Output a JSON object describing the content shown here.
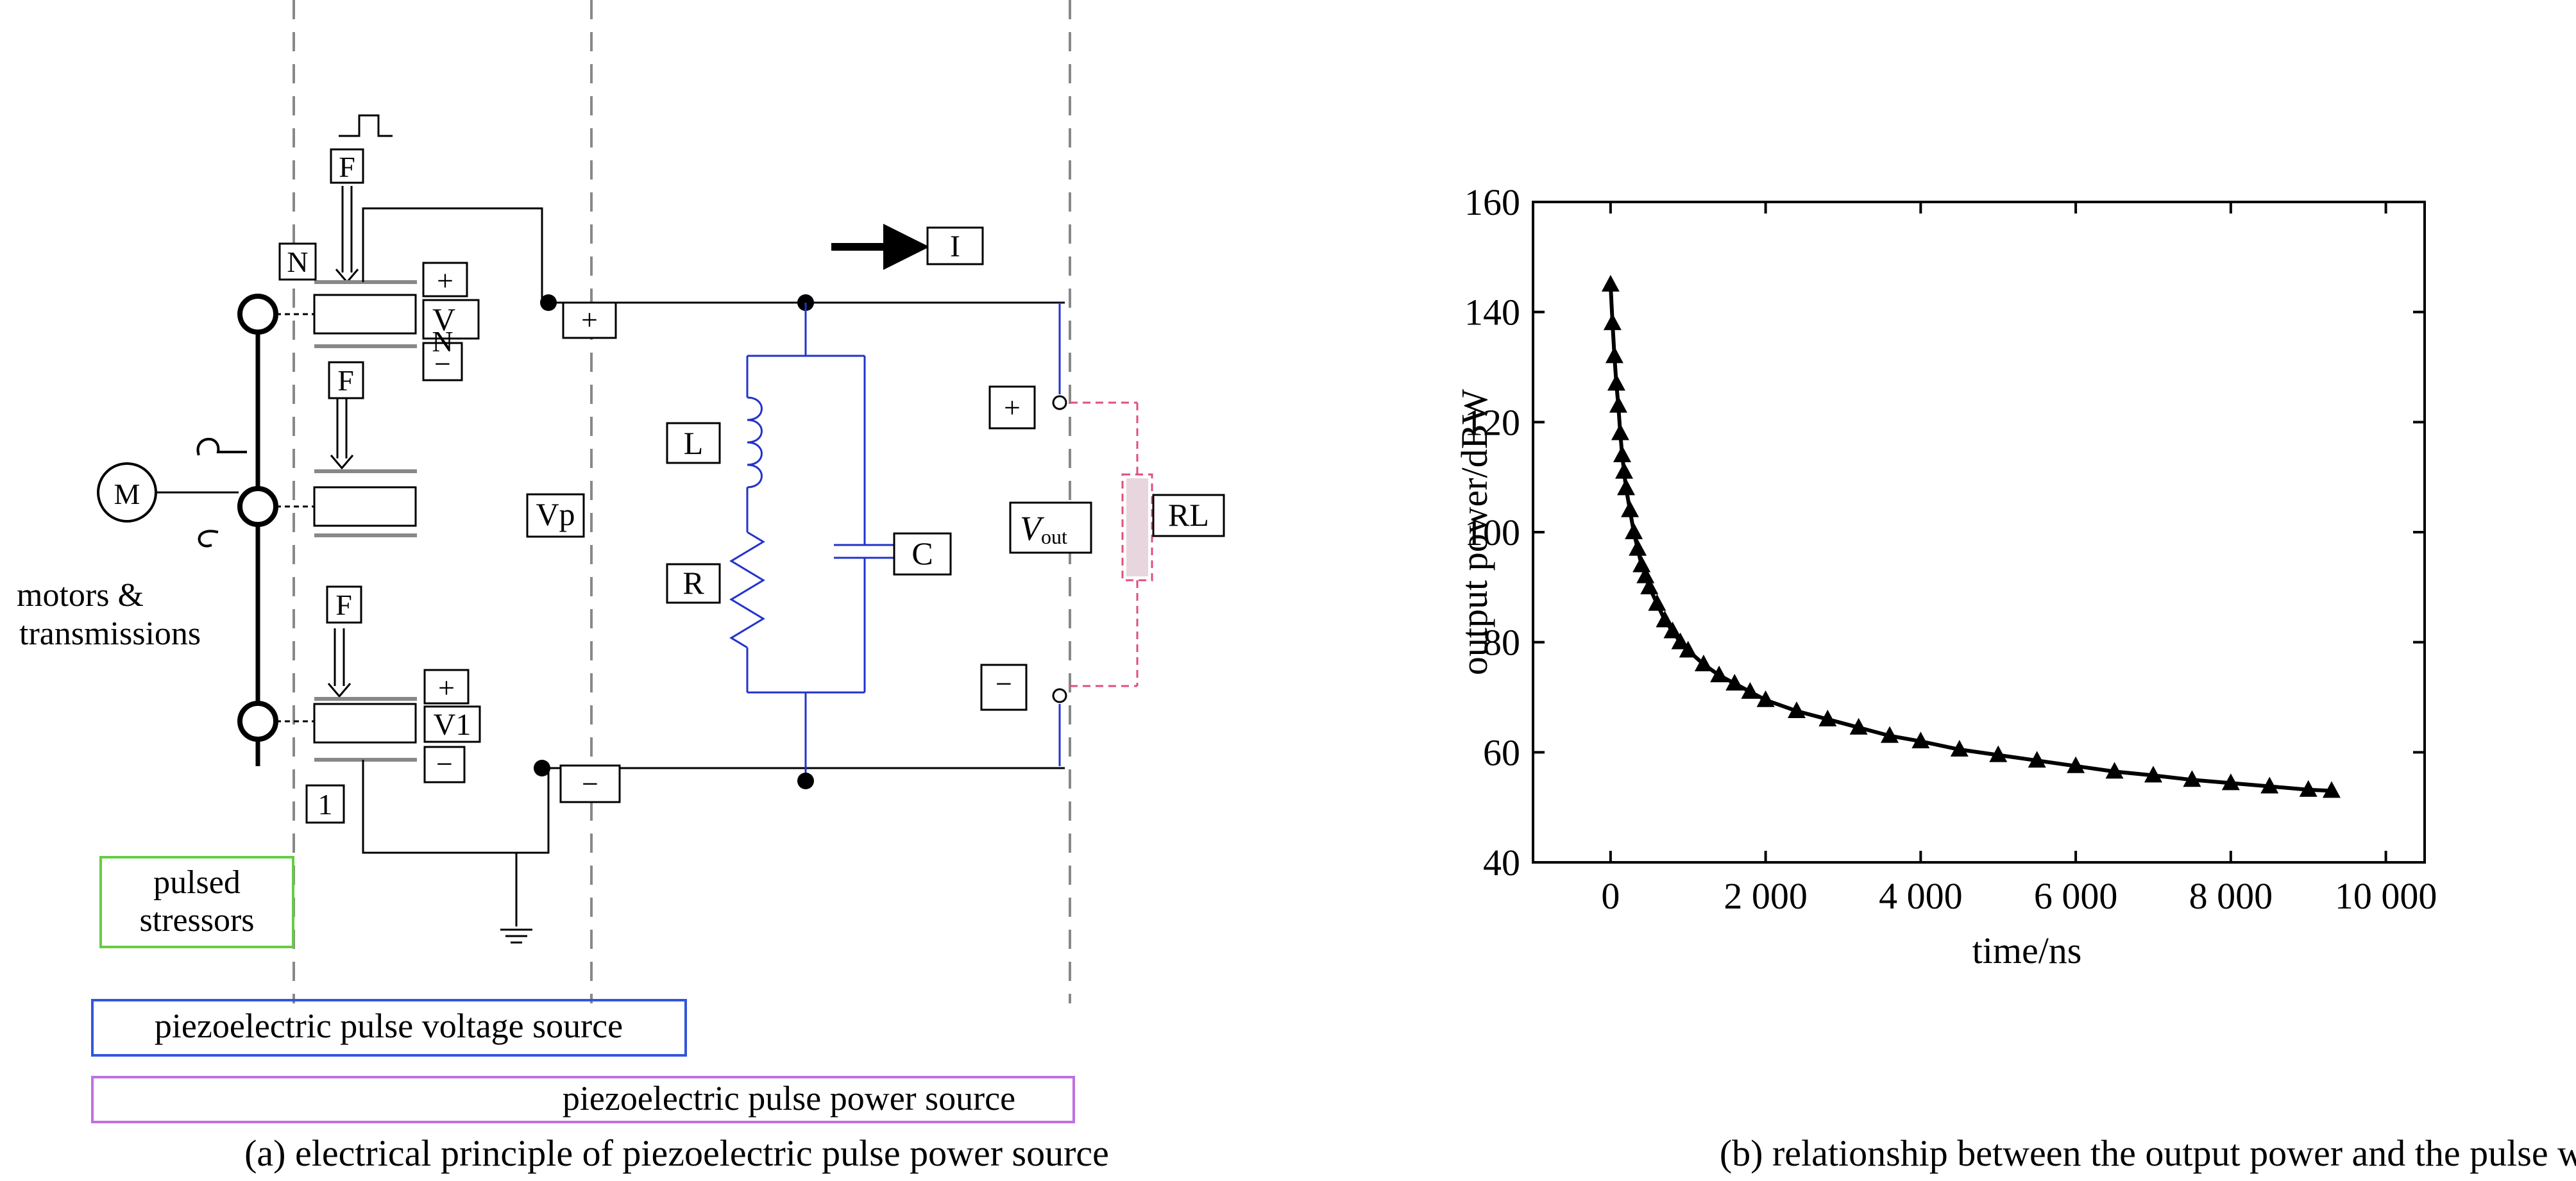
{
  "panel_a": {
    "caption": "(a) electrical principle of piezoelectric pulse power source",
    "labels": {
      "force": "F",
      "n_top": "N",
      "plus": "+",
      "minus": "−",
      "v_top": "V",
      "n_under_v": "N",
      "v1": "V1",
      "one": "1",
      "motor": "M",
      "motors_line1": "motors &",
      "motors_line2": "transmissions",
      "vp": "Vp",
      "L": "L",
      "R": "R",
      "C": "C",
      "I": "I",
      "vout_main": "V",
      "vout_sub": "out",
      "RL": "RL",
      "pulsed_line1": "pulsed",
      "pulsed_line2": "stressors",
      "voltage_source": "piezoelectric pulse voltage source",
      "power_source": "piezoelectric pulse power source"
    },
    "colors": {
      "circuit": "#000000",
      "rlc_branch": "#2233cc",
      "load": "#e0507a",
      "voltage_box": "#3355dd",
      "power_box": "#c070e0",
      "stressor_box": "#66cc44",
      "divider": "#888888"
    }
  },
  "panel_b": {
    "caption": "(b) relationship between the output power and the pulse width"
  },
  "chart_data": {
    "type": "scatter",
    "marker": "filled-triangle",
    "title": "",
    "xlabel": "time/ns",
    "ylabel": "output power/dBW",
    "xlim": [
      -1000,
      10500
    ],
    "ylim": [
      40,
      160
    ],
    "xticks": [
      0,
      2000,
      4000,
      6000,
      8000,
      10000
    ],
    "xtick_labels": [
      "0",
      "2 000",
      "4 000",
      "6 000",
      "8 000",
      "10 000"
    ],
    "yticks": [
      40,
      60,
      80,
      100,
      120,
      140,
      160
    ],
    "ytick_labels": [
      "40",
      "60",
      "80",
      "100",
      "120",
      "140",
      "160"
    ],
    "grid": false,
    "series": [
      {
        "x": [
          0,
          25,
          50,
          75,
          100,
          125,
          150,
          175,
          200,
          250,
          300,
          350,
          400,
          450,
          500,
          600,
          700,
          800,
          900,
          1000,
          1200,
          1400,
          1600,
          1800,
          2000,
          2400,
          2800,
          3200,
          3600,
          4000,
          4500,
          5000,
          5500,
          6000,
          6500,
          7000,
          7500,
          8000,
          8500,
          9000,
          9300
        ],
        "y": [
          145,
          138,
          132,
          127,
          123,
          118,
          114,
          111,
          108,
          104,
          100,
          97,
          94,
          92,
          90,
          87,
          84,
          82,
          80,
          78.5,
          76,
          74,
          72.5,
          71,
          69.5,
          67.5,
          66,
          64.5,
          63,
          62,
          60.5,
          59.5,
          58.5,
          57.5,
          56.5,
          55.8,
          55,
          54.4,
          53.8,
          53.2,
          53
        ]
      }
    ]
  }
}
